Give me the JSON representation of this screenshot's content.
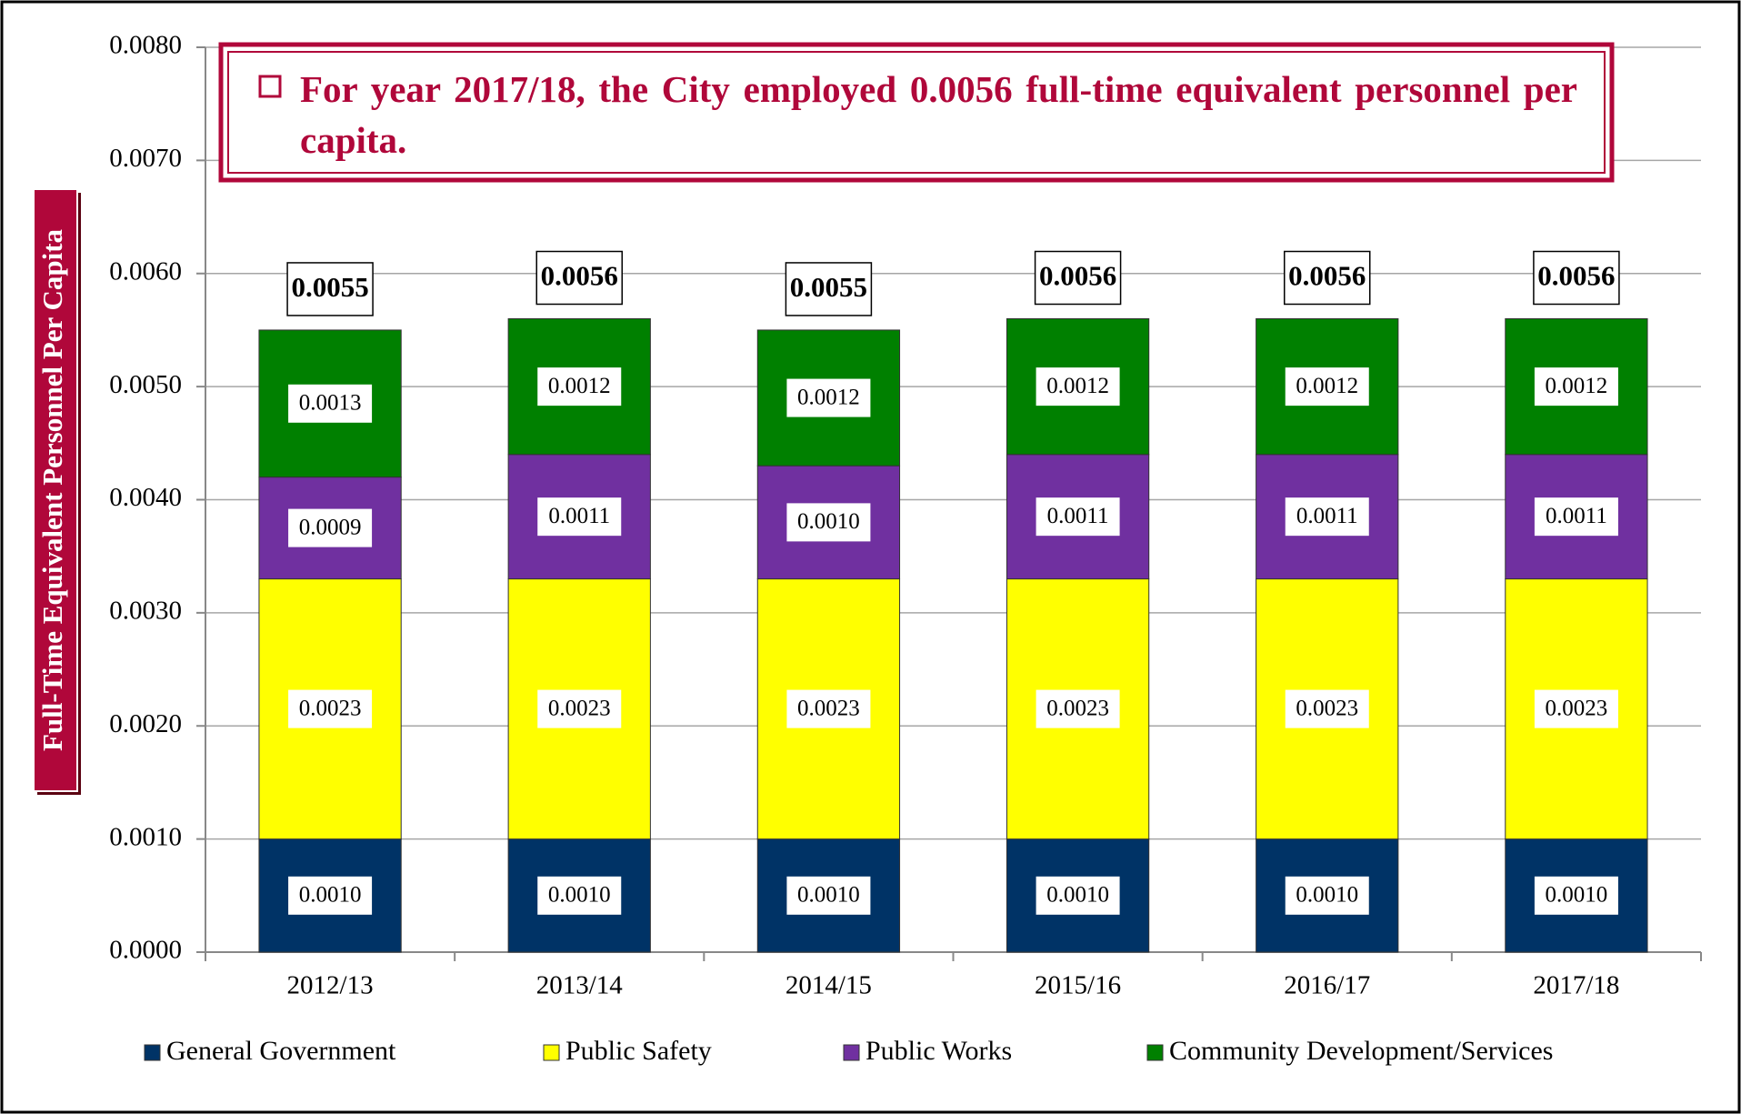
{
  "chart_data": {
    "type": "stacked_bar",
    "annotation": "For year 2017/18, the City employed 0.0056 full-time equivalent personnel per capita.",
    "y_label": "Full-Time Equivalent Personnel Per Capita",
    "categories": [
      "2012/13",
      "2013/14",
      "2014/15",
      "2015/16",
      "2016/17",
      "2017/18"
    ],
    "series": [
      {
        "name": "General Government",
        "color": "#003366",
        "values": [
          0.001,
          0.001,
          0.001,
          0.001,
          0.001,
          0.001
        ],
        "value_labels": [
          "0.0010",
          "0.0010",
          "0.0010",
          "0.0010",
          "0.0010",
          "0.0010"
        ]
      },
      {
        "name": "Public Safety",
        "color": "#ffff00",
        "values": [
          0.0023,
          0.0023,
          0.0023,
          0.0023,
          0.0023,
          0.0023
        ],
        "value_labels": [
          "0.0023",
          "0.0023",
          "0.0023",
          "0.0023",
          "0.0023",
          "0.0023"
        ]
      },
      {
        "name": "Public Works",
        "color": "#7030a0",
        "values": [
          0.0009,
          0.0011,
          0.001,
          0.0011,
          0.0011,
          0.0011
        ],
        "value_labels": [
          "0.0009",
          "0.0011",
          "0.0010",
          "0.0011",
          "0.0011",
          "0.0011"
        ]
      },
      {
        "name": "Community Development/Services",
        "color": "#008000",
        "values": [
          0.0013,
          0.0012,
          0.0012,
          0.0012,
          0.0012,
          0.0012
        ],
        "value_labels": [
          "0.0013",
          "0.0012",
          "0.0012",
          "0.0012",
          "0.0012",
          "0.0012"
        ]
      }
    ],
    "totals": [
      0.0055,
      0.0056,
      0.0055,
      0.0056,
      0.0056,
      0.0056
    ],
    "total_labels": [
      "0.0055",
      "0.0056",
      "0.0055",
      "0.0056",
      "0.0056",
      "0.0056"
    ],
    "ylim": [
      0,
      0.008
    ],
    "yticks": [
      {
        "value": 0,
        "label": "0.0000"
      },
      {
        "value": 0.001,
        "label": "0.0010"
      },
      {
        "value": 0.002,
        "label": "0.0020"
      },
      {
        "value": 0.003,
        "label": "0.0030"
      },
      {
        "value": 0.004,
        "label": "0.0040"
      },
      {
        "value": 0.005,
        "label": "0.0050"
      },
      {
        "value": 0.006,
        "label": "0.0060"
      },
      {
        "value": 0.007,
        "label": "0.0070"
      },
      {
        "value": 0.008,
        "label": "0.0080"
      }
    ],
    "grid": true,
    "legend": "bottom"
  }
}
